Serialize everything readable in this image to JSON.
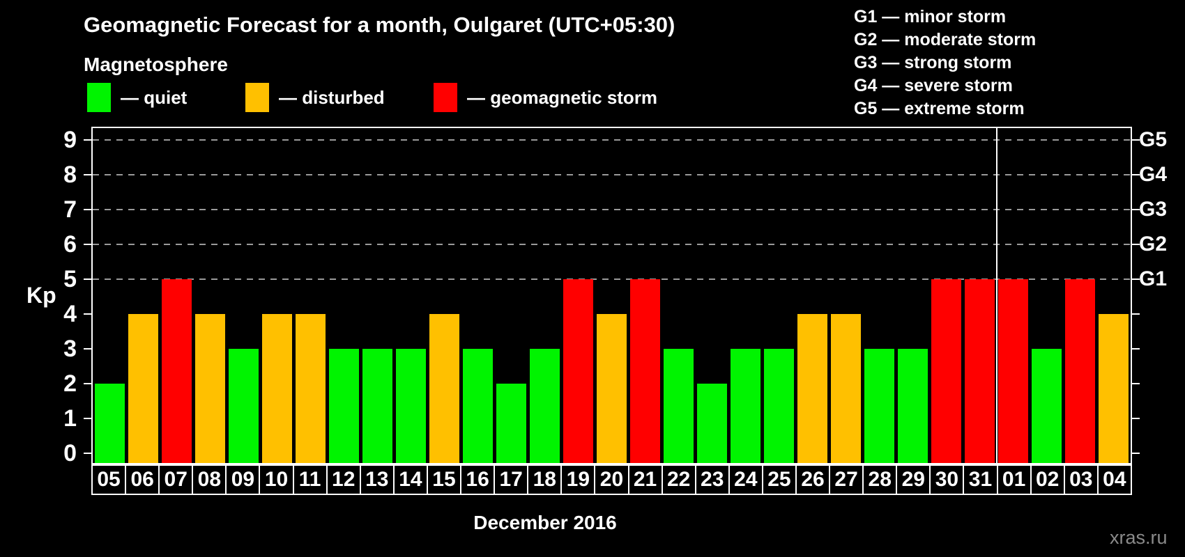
{
  "header": {
    "title": "Geomagnetic Forecast for a month, Oulgaret (UTC+05:30)",
    "subtitle": "Magnetosphere",
    "legend": [
      {
        "key": "quiet",
        "label": "— quiet"
      },
      {
        "key": "disturbed",
        "label": "— disturbed"
      },
      {
        "key": "storm",
        "label": "— geomagnetic storm"
      }
    ],
    "g_legend": [
      "G1 — minor storm",
      "G2 — moderate storm",
      "G3 — strong storm",
      "G4 — severe storm",
      "G5 — extreme storm"
    ]
  },
  "chart_data": {
    "type": "bar",
    "title": "Geomagnetic Forecast for a month, Oulgaret (UTC+05:30)",
    "subtitle": "Magnetosphere",
    "ylabel": "Kp",
    "xlabel": "December 2016",
    "ylim": [
      0,
      9
    ],
    "y_ticks": [
      "0",
      "1",
      "2",
      "3",
      "4",
      "5",
      "6",
      "7",
      "8",
      "9"
    ],
    "g_ticks": [
      {
        "kp": 5,
        "label": "G1"
      },
      {
        "kp": 6,
        "label": "G2"
      },
      {
        "kp": 7,
        "label": "G3"
      },
      {
        "kp": 8,
        "label": "G4"
      },
      {
        "kp": 9,
        "label": "G5"
      }
    ],
    "gridline_levels": [
      5,
      6,
      7,
      8,
      9
    ],
    "grid": "horizontal dashed gray lines at Kp 5-9 (G1-G5)",
    "legend_position": "top-left",
    "categories": [
      "05",
      "06",
      "07",
      "08",
      "09",
      "10",
      "11",
      "12",
      "13",
      "14",
      "15",
      "16",
      "17",
      "18",
      "19",
      "20",
      "21",
      "22",
      "23",
      "24",
      "25",
      "26",
      "27",
      "28",
      "29",
      "30",
      "31",
      "01",
      "02",
      "03",
      "04"
    ],
    "values": [
      2,
      4,
      5,
      4,
      3,
      4,
      4,
      3,
      3,
      3,
      4,
      3,
      2,
      3,
      5,
      4,
      5,
      3,
      2,
      3,
      3,
      4,
      4,
      3,
      3,
      5,
      5,
      5,
      3,
      5,
      4
    ],
    "statuses": [
      "quiet",
      "disturbed",
      "storm",
      "disturbed",
      "quiet",
      "disturbed",
      "disturbed",
      "quiet",
      "quiet",
      "quiet",
      "disturbed",
      "quiet",
      "quiet",
      "quiet",
      "storm",
      "disturbed",
      "storm",
      "quiet",
      "quiet",
      "quiet",
      "quiet",
      "disturbed",
      "disturbed",
      "quiet",
      "quiet",
      "storm",
      "storm",
      "storm",
      "quiet",
      "storm",
      "disturbed"
    ],
    "month_separator_after_index": 26,
    "colors": {
      "quiet": "#00f400",
      "disturbed": "#ffc000",
      "storm": "#ff0000"
    }
  },
  "footer": {
    "month_label": "December 2016",
    "watermark": "xras.ru"
  }
}
